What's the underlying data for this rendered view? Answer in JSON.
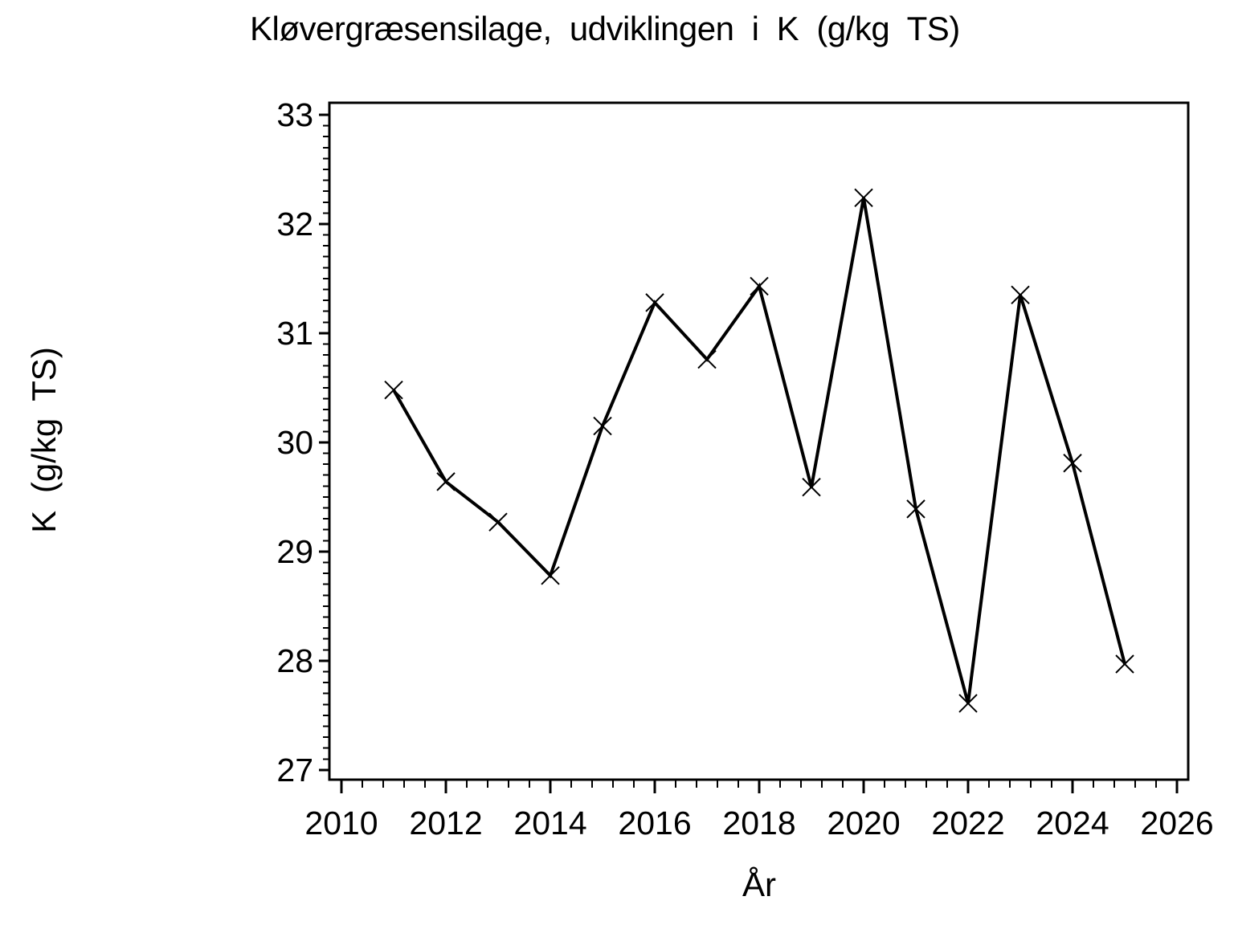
{
  "chart_data": {
    "type": "line",
    "title": "Kløvergræsensilage, udviklingen i K (g/kg TS)",
    "xlabel": "År",
    "ylabel": "K (g/kg TS)",
    "x": [
      2011,
      2012,
      2013,
      2014,
      2015,
      2016,
      2017,
      2018,
      2019,
      2020,
      2021,
      2022,
      2023,
      2024,
      2025
    ],
    "series": [
      {
        "name": "K (g/kg TS)",
        "values": [
          30.48,
          29.64,
          29.27,
          28.78,
          30.15,
          31.28,
          30.76,
          31.43,
          29.59,
          32.24,
          29.39,
          27.61,
          31.35,
          29.81,
          27.97
        ]
      }
    ],
    "marker": "x",
    "line_color": "#000000",
    "background_color": "#ffffff",
    "xlim": [
      2009.769,
      2026.215
    ],
    "ylim": [
      26.911,
      33.11
    ],
    "x_ticks_major": [
      2010,
      2012,
      2014,
      2016,
      2018,
      2020,
      2022,
      2024,
      2026
    ],
    "x_minor_step": 0.4,
    "x_minor_range": [
      2010,
      2026
    ],
    "y_ticks_major": [
      27,
      28,
      29,
      30,
      31,
      32,
      33
    ],
    "y_minor_step": 0.1,
    "y_minor_range": [
      27,
      33
    ],
    "grid": "off",
    "legend": "none"
  }
}
